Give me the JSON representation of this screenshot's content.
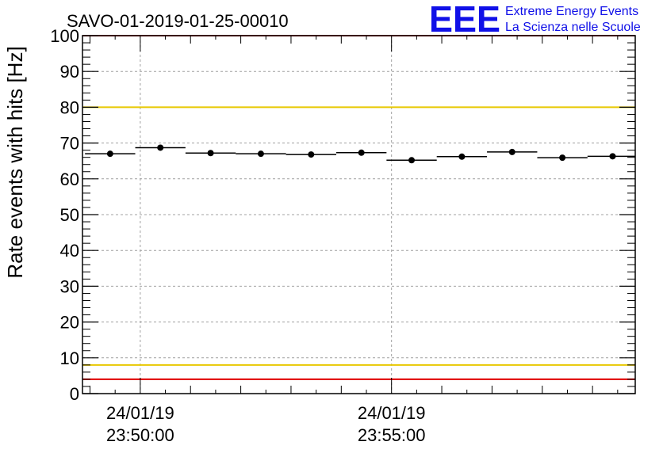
{
  "chart_data": {
    "type": "scatter",
    "title": "SAVO-01-2019-01-25-00010",
    "xlabel": "",
    "ylabel": "Rate events with hits [Hz]",
    "ylim": [
      0,
      100
    ],
    "yticks": [
      0,
      10,
      20,
      30,
      40,
      50,
      60,
      70,
      80,
      90,
      100
    ],
    "xlim_minutes": [
      -1.15,
      9.85
    ],
    "x_tick_labels": [
      {
        "minute": 0,
        "date": "24/01/19",
        "time": "23:50:00"
      },
      {
        "minute": 5,
        "date": "24/01/19",
        "time": "23:55:00"
      }
    ],
    "grid": true,
    "series": [
      {
        "name": "rate",
        "bin_width_minutes": 1.0,
        "x_minutes": [
          -0.6,
          0.4,
          1.4,
          2.4,
          3.4,
          4.4,
          5.4,
          6.4,
          7.4,
          8.4,
          9.4
        ],
        "values": [
          67.0,
          68.7,
          67.2,
          67.0,
          66.8,
          67.3,
          65.2,
          66.2,
          67.5,
          65.9,
          66.3
        ]
      }
    ],
    "reference_lines": [
      {
        "y": 100,
        "color": "#e00000"
      },
      {
        "y": 80,
        "color": "#e8c800"
      },
      {
        "y": 8,
        "color": "#e8c800"
      },
      {
        "y": 4,
        "color": "#e00000"
      }
    ]
  },
  "logo": {
    "text": "EEE",
    "line1": "Extreme Energy Events",
    "line2": "La Scienza nelle Scuole",
    "color": "#1010e8"
  }
}
